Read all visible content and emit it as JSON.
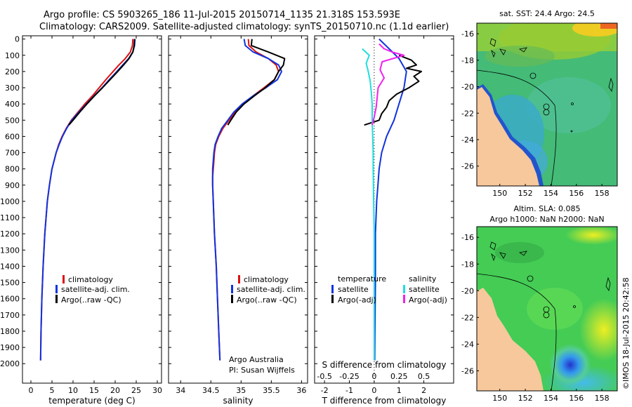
{
  "header": {
    "line1": "Argo profile: CS 5903265_186 11-Jul-2015 20150714_1135 21.318S 153.593E",
    "line2": "Climatology: CARS2009. Satellite-adjusted climatology: synTS_20150710.nc (1.1d earlier)"
  },
  "credit": "©IMOS 18-Jul-2015 20:42:58",
  "colors": {
    "climatology": "#dd1111",
    "satellite": "#1133dd",
    "argo": "#000000",
    "sal_sat": "#22dddd",
    "sal_argo": "#ee22ee",
    "land": "#f7c89b"
  },
  "chart_data": [
    {
      "type": "line",
      "id": "temperature",
      "xlabel": "temperature (deg C)",
      "ylabel": "",
      "xlim": [
        -2,
        31
      ],
      "ylim": [
        2100,
        0
      ],
      "xticks": [
        0,
        5,
        10,
        15,
        20,
        25,
        30
      ],
      "yticks": [
        0,
        100,
        200,
        300,
        400,
        500,
        600,
        700,
        800,
        900,
        1000,
        1100,
        1200,
        1300,
        1400,
        1500,
        1600,
        1700,
        1800,
        1900,
        2000
      ],
      "legend": [
        "climatology",
        "satellite-adj. clim.",
        "Argo(..raw -QC)"
      ],
      "series": [
        {
          "name": "climatology",
          "color": "#dd1111",
          "depth": [
            0,
            40,
            80,
            120,
            160,
            200,
            250,
            300,
            350,
            400,
            450,
            500,
            550,
            600,
            650,
            700,
            800,
            900,
            1000,
            1200,
            1400,
            1600,
            1800,
            1980
          ],
          "x": [
            24.2,
            24.1,
            23.6,
            22.4,
            20.9,
            19.5,
            17.8,
            16.2,
            14.6,
            12.8,
            11.2,
            9.6,
            8.4,
            7.4,
            6.6,
            6.0,
            5.0,
            4.4,
            3.9,
            3.3,
            2.9,
            2.6,
            2.4,
            2.3
          ]
        },
        {
          "name": "satellite-adj. clim.",
          "color": "#1133dd",
          "depth": [
            0,
            40,
            80,
            120,
            160,
            200,
            250,
            300,
            350,
            400,
            450,
            500,
            550,
            600,
            650,
            700,
            800,
            900,
            1000,
            1200,
            1400,
            1600,
            1800,
            1980
          ],
          "x": [
            24.7,
            24.6,
            24.2,
            23.2,
            21.8,
            20.4,
            18.6,
            16.9,
            15.0,
            13.2,
            11.4,
            9.7,
            8.5,
            7.5,
            6.7,
            6.0,
            5.0,
            4.4,
            3.9,
            3.3,
            2.9,
            2.6,
            2.4,
            2.3
          ]
        },
        {
          "name": "Argo(..raw -QC)",
          "color": "#000000",
          "depth": [
            0,
            40,
            80,
            120,
            160,
            200,
            250,
            300,
            350,
            400,
            450,
            500,
            530
          ],
          "x": [
            24.6,
            24.5,
            24.2,
            23.3,
            22.0,
            20.6,
            18.8,
            17.0,
            15.1,
            13.3,
            11.6,
            10.0,
            9.0
          ]
        }
      ]
    },
    {
      "type": "line",
      "id": "salinity",
      "xlabel": "salinity",
      "ylabel": "",
      "xlim": [
        33.8,
        36.1
      ],
      "ylim": [
        2100,
        0
      ],
      "xticks": [
        34,
        34.5,
        35,
        35.5,
        36
      ],
      "legend": [
        "climatology",
        "satellite-adj. clim.",
        "Argo(..raw -QC)"
      ],
      "annotation": [
        "Argo Australia",
        "PI: Susan Wijffels"
      ],
      "series": [
        {
          "name": "climatology",
          "color": "#dd1111",
          "depth": [
            0,
            40,
            80,
            120,
            160,
            200,
            250,
            300,
            350,
            400,
            450,
            500,
            550,
            600,
            650,
            700,
            750,
            800,
            850,
            900,
            1000,
            1200,
            1400,
            1600,
            1800,
            1980
          ],
          "x": [
            35.12,
            35.13,
            35.25,
            35.45,
            35.58,
            35.62,
            35.55,
            35.38,
            35.2,
            35.03,
            34.9,
            34.8,
            34.7,
            34.63,
            34.58,
            34.56,
            34.55,
            34.54,
            34.53,
            34.53,
            34.54,
            34.56,
            34.59,
            34.61,
            34.63,
            34.65
          ]
        },
        {
          "name": "satellite-adj. clim.",
          "color": "#1133dd",
          "depth": [
            0,
            40,
            80,
            120,
            160,
            200,
            250,
            300,
            350,
            400,
            450,
            500,
            550,
            600,
            650,
            700,
            750,
            800,
            850,
            900,
            1000,
            1200,
            1400,
            1600,
            1800,
            1980
          ],
          "x": [
            35.05,
            35.07,
            35.2,
            35.45,
            35.62,
            35.67,
            35.6,
            35.41,
            35.2,
            35.02,
            34.88,
            34.78,
            34.68,
            34.62,
            34.57,
            34.55,
            34.54,
            34.53,
            34.53,
            34.53,
            34.54,
            34.56,
            34.59,
            34.61,
            34.63,
            34.65
          ]
        },
        {
          "name": "Argo(..raw -QC)",
          "color": "#000000",
          "depth": [
            0,
            40,
            80,
            120,
            160,
            200,
            250,
            300,
            350,
            400,
            450,
            500,
            530
          ],
          "x": [
            35.18,
            35.17,
            35.45,
            35.72,
            35.7,
            35.62,
            35.55,
            35.4,
            35.22,
            35.05,
            34.92,
            34.83,
            34.78
          ]
        }
      ]
    },
    {
      "type": "line",
      "id": "difference",
      "xlabel": "T difference from climatology",
      "xlabel2": "S difference from climatology",
      "xlim": [
        -2.4,
        3.2
      ],
      "ylim": [
        2100,
        0
      ],
      "xticks": [
        -2,
        -1,
        0,
        1,
        2
      ],
      "xticks_s": [
        "-0.5",
        "-0.25",
        "0",
        "0.25",
        "0.5"
      ],
      "legend_t": {
        "title": "temperature",
        "items": [
          "satellite",
          "Argo(-adj)"
        ]
      },
      "legend_s": {
        "title": "salinity",
        "items": [
          "satellite",
          "Argo(-adj)"
        ]
      },
      "series": [
        {
          "name": "T satellite",
          "color": "#1133dd",
          "depth": [
            0,
            60,
            120,
            200,
            300,
            400,
            500,
            600,
            700,
            800,
            900,
            1000,
            1200,
            1500,
            1800,
            1980
          ],
          "x": [
            0.2,
            0.6,
            1.0,
            1.3,
            1.2,
            1.0,
            0.8,
            0.5,
            0.3,
            0.2,
            0.15,
            0.1,
            0.05,
            0.05,
            0.03,
            0.02
          ]
        },
        {
          "name": "T Argo(-adj)",
          "color": "#000000",
          "depth": [
            100,
            130,
            160,
            180,
            200,
            230,
            260,
            300,
            340,
            380,
            420,
            460,
            500,
            530
          ],
          "x": [
            1.0,
            1.5,
            1.7,
            1.3,
            1.9,
            1.6,
            1.8,
            1.4,
            0.9,
            0.6,
            0.5,
            0.3,
            0.2,
            -0.4
          ]
        },
        {
          "name": "S satellite",
          "color": "#22dddd",
          "depth": [
            60,
            100,
            150,
            200,
            260,
            320,
            400,
            500,
            600,
            700,
            800,
            1000,
            1200,
            1500,
            1800,
            1980
          ],
          "x": [
            -0.12,
            -0.05,
            -0.08,
            -0.06,
            -0.04,
            -0.03,
            -0.02,
            -0.02,
            -0.015,
            -0.01,
            -0.01,
            -0.005,
            0,
            0,
            0,
            0
          ]
        },
        {
          "name": "S Argo(-adj)",
          "color": "#ee22ee",
          "depth": [
            30,
            60,
            80,
            100,
            140,
            190,
            240,
            300,
            360,
            420,
            480,
            530
          ],
          "x": [
            0.05,
            0.1,
            0.18,
            0.3,
            0.08,
            0.06,
            0.1,
            0.04,
            0.03,
            0.02,
            0.0,
            -0.02
          ]
        }
      ]
    },
    {
      "type": "heatmap",
      "id": "sst_map",
      "title": "sat. SST: 24.4  Argo: 24.5",
      "xlim": [
        148.2,
        159.2
      ],
      "ylim": [
        -27.5,
        -15.2
      ],
      "xticks": [
        150,
        152,
        154,
        156,
        158
      ],
      "yticks": [
        -16,
        -18,
        -20,
        -22,
        -24,
        -26
      ]
    },
    {
      "type": "heatmap",
      "id": "sla_map",
      "title": "Altim. SLA: 0.085",
      "subtitle": "Argo h1000: NaN h2000: NaN",
      "xlim": [
        148.2,
        159.2
      ],
      "ylim": [
        -27.5,
        -15.2
      ],
      "xticks": [
        150,
        152,
        154,
        156,
        158
      ],
      "yticks": [
        -16,
        -18,
        -20,
        -22,
        -24,
        -26
      ]
    }
  ]
}
